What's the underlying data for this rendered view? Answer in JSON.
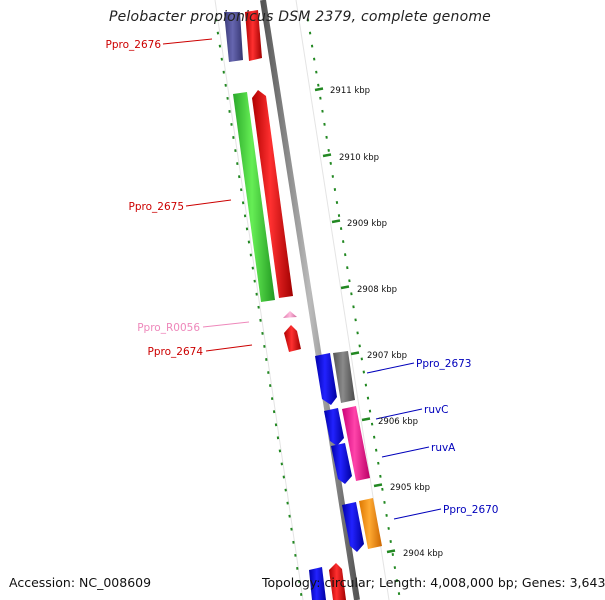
{
  "title": "Pelobacter propionicus DSM 2379, complete genome",
  "footer": {
    "accession": "Accession: NC_008609",
    "topology": "Topology: circular;",
    "length": "Length: 4,008,000 bp;",
    "genes": "Genes: 3,643"
  },
  "colors": {
    "backbone": "#777777",
    "tick": "#228822",
    "red_label": "#cc0000",
    "blue_label": "#0000bb",
    "pink_label": "#ee88bb"
  },
  "scale_labels": [
    "2911 kbp",
    "2910 kbp",
    "2909 kbp",
    "2908 kbp",
    "2907 kbp",
    "2906 kbp",
    "2905 kbp",
    "2904 kbp"
  ],
  "genes": [
    {
      "label": "Ppro_2676",
      "color": "#cc0000"
    },
    {
      "label": "Ppro_2675",
      "color": "#cc0000"
    },
    {
      "label": "Ppro_R0056",
      "color": "#ee88bb"
    },
    {
      "label": "Ppro_2674",
      "color": "#cc0000"
    },
    {
      "label": "Ppro_2673",
      "color": "#0000bb"
    },
    {
      "label": "ruvC",
      "color": "#0000bb"
    },
    {
      "label": "ruvA",
      "color": "#0000bb"
    },
    {
      "label": "Ppro_2670",
      "color": "#0000bb"
    }
  ]
}
